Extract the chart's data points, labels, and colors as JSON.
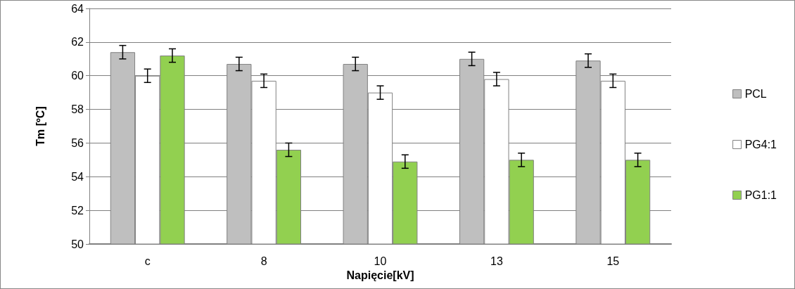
{
  "chart_data": {
    "type": "bar",
    "xlabel": "Napięcie[kV]",
    "ylabel": "Tm [ºC]",
    "categories": [
      "c",
      "8",
      "10",
      "13",
      "15"
    ],
    "series": [
      {
        "name": "PCL",
        "color": "#bfbfbf",
        "values": [
          61.4,
          60.7,
          60.7,
          61.0,
          60.9
        ],
        "errors": [
          0.4,
          0.4,
          0.4,
          0.4,
          0.4
        ]
      },
      {
        "name": "PG4:1",
        "color": "#ffffff",
        "values": [
          60.0,
          59.7,
          59.0,
          59.8,
          59.7
        ],
        "errors": [
          0.4,
          0.4,
          0.4,
          0.4,
          0.4
        ]
      },
      {
        "name": "PG1:1",
        "color": "#92d050",
        "values": [
          61.2,
          55.6,
          54.9,
          55.0,
          55.0
        ],
        "errors": [
          0.4,
          0.4,
          0.4,
          0.4,
          0.4
        ]
      }
    ],
    "ylim": [
      50,
      64
    ],
    "yticks": [
      50,
      52,
      54,
      56,
      58,
      60,
      62,
      64
    ],
    "grid": "y",
    "legend": "right"
  }
}
